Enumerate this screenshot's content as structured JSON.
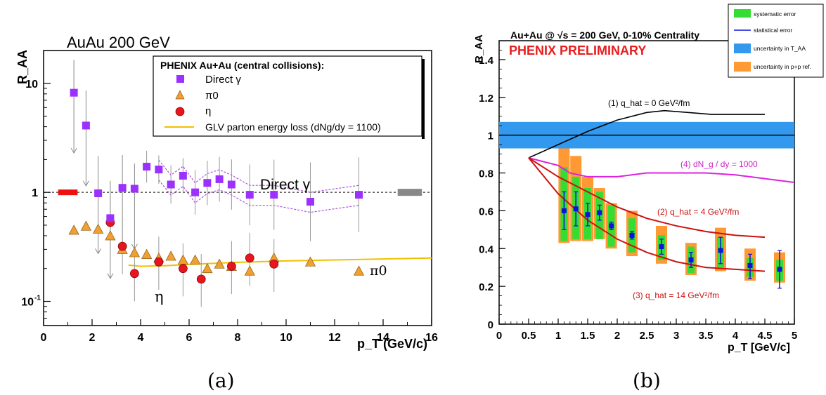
{
  "captions": {
    "a": "(a)",
    "b": "(b)"
  },
  "chart_data": [
    {
      "type": "scatter",
      "title": "AuAu 200 GeV",
      "xlabel": "p_T (GeV/c)",
      "ylabel": "R_AA",
      "xlim": [
        0,
        16
      ],
      "ylim": [
        0.06,
        20
      ],
      "yscale": "log",
      "x_ticks": [
        "0",
        "2",
        "4",
        "6",
        "8",
        "10",
        "12",
        "14",
        "16"
      ],
      "y_ticks": [
        "10",
        "1",
        "10^-1"
      ],
      "legend": {
        "title": "PHENIX Au+Au (central collisions):",
        "position": "top-right",
        "entries": [
          "Direct γ",
          "π0",
          "η",
          "GLV parton energy loss (dNg/dy = 1100)"
        ]
      },
      "annotations": {
        "direct": "Direct γ",
        "pi0": "π0",
        "eta": "η"
      },
      "colors": {
        "direct": "#9b30ff",
        "pi0": "#f0a030",
        "eta": "#e8141e",
        "glv": "#f0c000"
      },
      "series": [
        {
          "name": "Direct γ",
          "marker": "square",
          "x": [
            1.25,
            1.75,
            2.25,
            2.75,
            3.25,
            3.75,
            4.25,
            4.75,
            5.25,
            5.75,
            6.25,
            6.75,
            7.25,
            7.75,
            8.5,
            9.5,
            11.0,
            13.0
          ],
          "y": [
            8.2,
            4.1,
            0.98,
            0.58,
            1.1,
            1.08,
            1.72,
            1.62,
            1.18,
            1.42,
            1.0,
            1.22,
            1.32,
            1.18,
            0.95,
            0.95,
            0.82,
            0.95
          ]
        },
        {
          "name": "π0",
          "marker": "triangle",
          "x": [
            1.25,
            1.75,
            2.25,
            2.75,
            3.25,
            3.75,
            4.25,
            4.75,
            5.25,
            5.75,
            6.25,
            6.75,
            7.25,
            7.75,
            8.5,
            9.5,
            11.0,
            13.0
          ],
          "y": [
            0.45,
            0.49,
            0.46,
            0.4,
            0.3,
            0.28,
            0.27,
            0.25,
            0.26,
            0.24,
            0.24,
            0.2,
            0.22,
            0.21,
            0.19,
            0.25,
            0.23,
            0.19
          ]
        },
        {
          "name": "η",
          "marker": "circle",
          "x": [
            2.75,
            3.25,
            3.75,
            4.75,
            5.75,
            6.5,
            7.75,
            8.5,
            9.5
          ],
          "y": [
            0.53,
            0.32,
            0.18,
            0.23,
            0.2,
            0.16,
            0.21,
            0.25,
            0.22
          ]
        },
        {
          "name": "GLV parton energy loss (dNg/dy = 1100)",
          "marker": "line",
          "x": [
            3.5,
            4.0,
            5.0,
            6.0,
            8.0,
            10.0,
            12.0,
            14.0,
            16.0
          ],
          "y": [
            0.215,
            0.21,
            0.212,
            0.218,
            0.228,
            0.235,
            0.24,
            0.245,
            0.25
          ]
        }
      ]
    },
    {
      "type": "line",
      "title": "Au+Au @ √s = 200 GeV, 0-10% Centrality",
      "subtitle": "PHENIX PRELIMINARY",
      "xlabel": "p_T [GeV/c]",
      "ylabel": "R_AA",
      "xlim": [
        0,
        5
      ],
      "ylim": [
        0,
        1.5
      ],
      "x_ticks": [
        "0",
        "0.5",
        "1",
        "1.5",
        "2",
        "2.5",
        "3",
        "3.5",
        "4",
        "4.5",
        "5"
      ],
      "y_ticks": [
        "0",
        "0.2",
        "0.4",
        "0.6",
        "0.8",
        "1",
        "1.2",
        "1.4"
      ],
      "legend": {
        "position": "top-right",
        "entries": [
          "systematic error",
          "statistical error",
          "uncertainty in T_AA",
          "uncertainty in p+p ref."
        ]
      },
      "colors": {
        "syst": "#33dd33",
        "stat": "#1010dd",
        "taa": "#3399ee",
        "ppref": "#ff9933",
        "q0": "#000000",
        "dng": "#dd22dd",
        "q4": "#cc1111",
        "q14": "#cc1111"
      },
      "taa_band": [
        0.93,
        1.07
      ],
      "unity_line": 1.0,
      "data": {
        "x": [
          1.1,
          1.3,
          1.5,
          1.7,
          1.9,
          2.25,
          2.75,
          3.25,
          3.75,
          4.25,
          4.75
        ],
        "y": [
          0.6,
          0.61,
          0.58,
          0.59,
          0.52,
          0.47,
          0.41,
          0.34,
          0.39,
          0.31,
          0.29
        ],
        "syst_lo": [
          0.44,
          0.45,
          0.45,
          0.45,
          0.41,
          0.38,
          0.34,
          0.27,
          0.3,
          0.25,
          0.23
        ],
        "syst_hi": [
          0.83,
          0.78,
          0.72,
          0.7,
          0.63,
          0.56,
          0.47,
          0.41,
          0.46,
          0.35,
          0.34
        ],
        "pp_lo": [
          0.43,
          0.44,
          0.44,
          0.45,
          0.4,
          0.36,
          0.32,
          0.26,
          0.28,
          0.23,
          0.22
        ],
        "pp_hi": [
          0.93,
          0.89,
          0.78,
          0.72,
          0.64,
          0.6,
          0.52,
          0.43,
          0.51,
          0.4,
          0.38
        ],
        "stat_lo": [
          0.5,
          0.52,
          0.52,
          0.55,
          0.5,
          0.45,
          0.37,
          0.3,
          0.32,
          0.24,
          0.19
        ],
        "stat_hi": [
          0.7,
          0.7,
          0.64,
          0.63,
          0.54,
          0.49,
          0.45,
          0.38,
          0.46,
          0.37,
          0.39
        ]
      },
      "curves": [
        {
          "name": "(1) q_hat = 0 GeV²/fm",
          "x": [
            0.5,
            1.0,
            1.5,
            2.0,
            2.5,
            2.8,
            3.2,
            3.6,
            4.0,
            4.5
          ],
          "y": [
            0.88,
            0.95,
            1.02,
            1.08,
            1.12,
            1.13,
            1.12,
            1.11,
            1.11,
            1.11
          ]
        },
        {
          "name": "(4) dN_g / dy = 1000",
          "x": [
            0.5,
            1.0,
            1.2,
            1.5,
            2.0,
            2.5,
            3.0,
            3.5,
            4.0,
            4.5,
            5.0
          ],
          "y": [
            0.88,
            0.84,
            0.8,
            0.78,
            0.78,
            0.8,
            0.8,
            0.8,
            0.79,
            0.77,
            0.75
          ]
        },
        {
          "name": "(2) q_hat = 4 GeV²/fm",
          "x": [
            0.5,
            1.0,
            1.5,
            2.0,
            2.5,
            3.0,
            3.5,
            4.0,
            4.5
          ],
          "y": [
            0.88,
            0.78,
            0.7,
            0.62,
            0.56,
            0.52,
            0.49,
            0.47,
            0.46
          ]
        },
        {
          "name": "(3) q_hat = 14 GeV²/fm",
          "x": [
            0.5,
            1.0,
            1.5,
            2.0,
            2.5,
            3.0,
            3.5,
            4.0,
            4.5
          ],
          "y": [
            0.88,
            0.69,
            0.55,
            0.45,
            0.38,
            0.33,
            0.3,
            0.29,
            0.28
          ]
        }
      ]
    }
  ]
}
